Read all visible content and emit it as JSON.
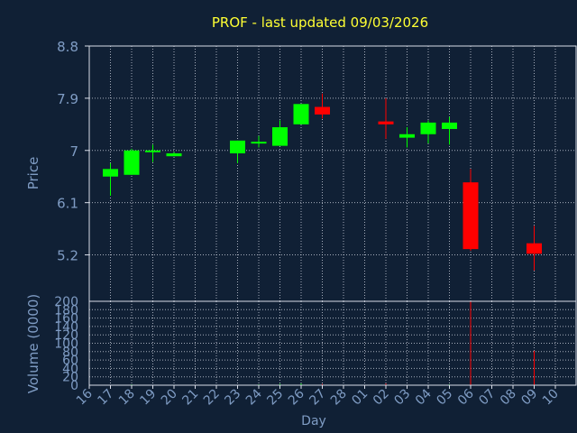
{
  "colors": {
    "background": "#102035",
    "plot_border": "#d8dde8",
    "grid": "#d8dde8",
    "axis_text": "#7f9cc4",
    "title": "#ffff33",
    "up": "#00ff00",
    "down": "#ff0000"
  },
  "chart_data": {
    "title": "PROF - last updated 09/03/2026",
    "price_panel": {
      "type": "candlestick",
      "ylabel": "Price",
      "ylim": [
        4.4,
        8.8
      ],
      "yticks": [
        "8.8",
        "7.9",
        "7",
        "6.1",
        "5.2"
      ],
      "candles": [
        {
          "day": "17",
          "open": 6.55,
          "high": 6.78,
          "low": 6.22,
          "close": 6.68
        },
        {
          "day": "18",
          "open": 6.58,
          "high": 7.03,
          "low": 6.58,
          "close": 7.0
        },
        {
          "day": "19",
          "open": 7.0,
          "high": 7.1,
          "low": 6.8,
          "close": 7.0
        },
        {
          "day": "20",
          "open": 6.9,
          "high": 6.97,
          "low": 6.9,
          "close": 6.95
        },
        {
          "day": "23",
          "open": 6.95,
          "high": 7.17,
          "low": 6.78,
          "close": 7.17
        },
        {
          "day": "24",
          "open": 7.12,
          "high": 7.25,
          "low": 7.05,
          "close": 7.15
        },
        {
          "day": "25",
          "open": 7.08,
          "high": 7.52,
          "low": 7.08,
          "close": 7.4
        },
        {
          "day": "26",
          "open": 7.45,
          "high": 7.8,
          "low": 7.45,
          "close": 7.8
        },
        {
          "day": "27",
          "open": 7.75,
          "high": 7.98,
          "low": 7.55,
          "close": 7.62
        },
        {
          "day": "02",
          "open": 7.5,
          "high": 7.9,
          "low": 7.2,
          "close": 7.45
        },
        {
          "day": "03",
          "open": 7.22,
          "high": 7.4,
          "low": 7.05,
          "close": 7.28
        },
        {
          "day": "04",
          "open": 7.28,
          "high": 7.52,
          "low": 7.12,
          "close": 7.48
        },
        {
          "day": "05",
          "open": 7.37,
          "high": 7.58,
          "low": 7.1,
          "close": 7.48
        },
        {
          "day": "06",
          "open": 6.45,
          "high": 6.68,
          "low": 5.27,
          "close": 5.3
        },
        {
          "day": "09",
          "open": 5.4,
          "high": 5.7,
          "low": 4.93,
          "close": 5.22
        }
      ]
    },
    "volume_panel": {
      "type": "bar",
      "ylabel": "Volume (0000)",
      "ylim": [
        0,
        200
      ],
      "yticks": [
        "200",
        "180",
        "160",
        "140",
        "120",
        "100",
        "80",
        "60",
        "40",
        "20",
        "0"
      ],
      "bars": [
        {
          "day": "17",
          "value": 0.5,
          "direction": "up"
        },
        {
          "day": "18",
          "value": 2,
          "direction": "up"
        },
        {
          "day": "19",
          "value": 0.5,
          "direction": "down"
        },
        {
          "day": "20",
          "value": 1,
          "direction": "up"
        },
        {
          "day": "23",
          "value": 0.5,
          "direction": "up"
        },
        {
          "day": "24",
          "value": 2,
          "direction": "up"
        },
        {
          "day": "25",
          "value": 3,
          "direction": "up"
        },
        {
          "day": "26",
          "value": 4,
          "direction": "up"
        },
        {
          "day": "27",
          "value": 3,
          "direction": "down"
        },
        {
          "day": "02",
          "value": 4,
          "direction": "down"
        },
        {
          "day": "03",
          "value": 1,
          "direction": "up"
        },
        {
          "day": "04",
          "value": 1,
          "direction": "up"
        },
        {
          "day": "05",
          "value": 2,
          "direction": "up"
        },
        {
          "day": "06",
          "value": 200,
          "direction": "down"
        },
        {
          "day": "09",
          "value": 82,
          "direction": "down"
        }
      ]
    },
    "xaxis": {
      "label": "Day",
      "ticks": [
        "16",
        "17",
        "18",
        "19",
        "20",
        "21",
        "22",
        "23",
        "24",
        "25",
        "26",
        "27",
        "28",
        "01",
        "02",
        "03",
        "04",
        "05",
        "06",
        "07",
        "08",
        "09",
        "10"
      ]
    }
  }
}
